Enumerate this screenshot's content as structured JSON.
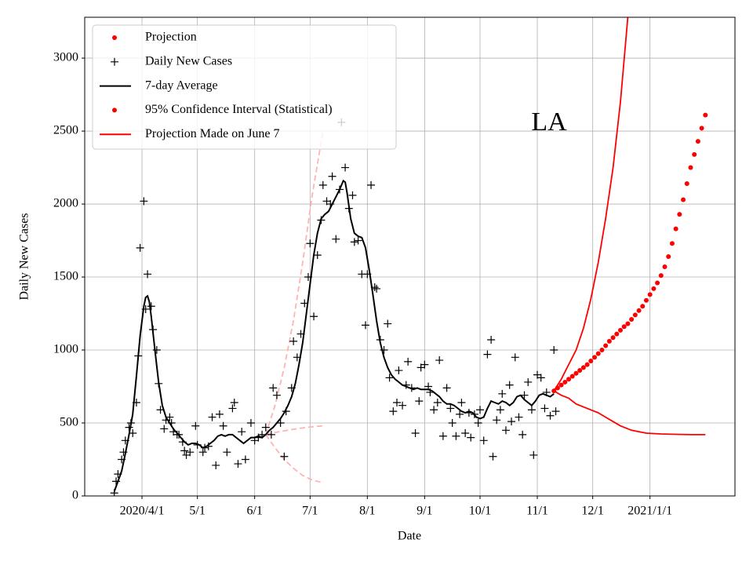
{
  "chart_data": {
    "type": "scatter",
    "annotation": "LA",
    "xlabel": "Date",
    "ylabel": "Daily New Cases",
    "grid": true,
    "legend": "upper left",
    "xlim": [
      60,
      412
    ],
    "ylim": [
      0,
      3280
    ],
    "xticks": [
      {
        "value": 91,
        "label": "2020/4/1"
      },
      {
        "value": 121,
        "label": "5/1"
      },
      {
        "value": 152,
        "label": "6/1"
      },
      {
        "value": 182,
        "label": "7/1"
      },
      {
        "value": 213,
        "label": "8/1"
      },
      {
        "value": 244,
        "label": "9/1"
      },
      {
        "value": 274,
        "label": "10/1"
      },
      {
        "value": 305,
        "label": "11/1"
      },
      {
        "value": 335,
        "label": "12/1"
      },
      {
        "value": 366,
        "label": "2021/1/1"
      }
    ],
    "yticks": [
      0,
      500,
      1000,
      1500,
      2000,
      2500,
      3000
    ],
    "series": [
      {
        "name": "Projection",
        "marker": "dot",
        "color": "#ff0000",
        "x": [
          314,
          316,
          318,
          320,
          322,
          324,
          326,
          328,
          330,
          332,
          334,
          336,
          338,
          340,
          342,
          344,
          346,
          348,
          350,
          352,
          354,
          356,
          358,
          360,
          362,
          364,
          366,
          368,
          370,
          372,
          374,
          376,
          378,
          380,
          382,
          384,
          386,
          388,
          390,
          392,
          394,
          396
        ],
        "values": [
          720,
          740,
          760,
          780,
          800,
          820,
          840,
          860,
          880,
          900,
          925,
          950,
          975,
          1000,
          1030,
          1060,
          1085,
          1110,
          1135,
          1160,
          1180,
          1210,
          1240,
          1270,
          1300,
          1340,
          1380,
          1420,
          1460,
          1510,
          1570,
          1640,
          1730,
          1830,
          1930,
          2030,
          2140,
          2250,
          2340,
          2430,
          2520,
          2610
        ]
      },
      {
        "name": "Daily New Cases",
        "marker": "plus",
        "color": "#000000",
        "x": [
          76,
          77,
          78,
          80,
          81,
          82,
          84,
          85,
          86,
          88,
          89,
          90,
          92,
          93,
          94,
          96,
          97,
          99,
          100,
          101,
          103,
          104,
          106,
          107,
          108,
          110,
          111,
          113,
          114,
          115,
          117,
          120,
          121,
          124,
          125,
          127,
          129,
          131,
          133,
          135,
          137,
          140,
          141,
          143,
          145,
          147,
          150,
          152,
          154,
          156,
          158,
          161,
          162,
          164,
          166,
          168,
          169,
          172,
          173,
          175,
          177,
          179,
          181,
          182,
          184,
          186,
          188,
          189,
          191,
          193,
          194,
          196,
          198,
          199,
          201,
          203,
          205,
          206,
          208,
          210,
          212,
          213,
          215,
          217,
          218,
          220,
          222,
          224,
          225,
          227,
          229,
          230,
          232,
          234,
          235,
          237,
          239,
          241,
          242,
          244,
          246,
          247,
          249,
          251,
          252,
          254,
          256,
          258,
          259,
          261,
          263,
          264,
          266,
          268,
          269,
          271,
          273,
          274,
          276,
          278,
          280,
          281,
          283,
          285,
          286,
          288,
          290,
          291,
          293,
          295,
          297,
          298,
          300,
          302,
          303,
          305,
          307,
          309,
          310,
          312,
          314,
          315
        ],
        "values": [
          20,
          100,
          150,
          250,
          300,
          380,
          470,
          500,
          430,
          640,
          960,
          1700,
          2020,
          1280,
          1520,
          1300,
          1140,
          1000,
          770,
          590,
          460,
          520,
          540,
          500,
          440,
          420,
          420,
          370,
          310,
          280,
          300,
          480,
          350,
          300,
          330,
          340,
          540,
          210,
          560,
          480,
          300,
          600,
          640,
          220,
          440,
          250,
          500,
          380,
          400,
          420,
          470,
          420,
          740,
          690,
          500,
          270,
          580,
          740,
          1060,
          950,
          1110,
          1320,
          1500,
          1730,
          1230,
          1650,
          1890,
          2130,
          2020,
          2000,
          2190,
          1760,
          2100,
          2560,
          2250,
          1970,
          2060,
          1740,
          1750,
          1520,
          1170,
          1520,
          2130,
          1430,
          1420,
          1070,
          1000,
          1180,
          810,
          580,
          640,
          860,
          620,
          760,
          920,
          740,
          430,
          650,
          880,
          900,
          750,
          710,
          590,
          640,
          930,
          410,
          740,
          600,
          500,
          410,
          560,
          640,
          430,
          570,
          400,
          560,
          500,
          590,
          380,
          970,
          1070,
          270,
          520,
          590,
          700,
          450,
          760,
          510,
          950,
          540,
          420,
          690,
          780,
          590,
          280,
          830,
          810,
          600,
          710,
          550,
          1000,
          580
        ]
      },
      {
        "name": "7-day Average",
        "marker": "line",
        "color": "#000000",
        "x": [
          76,
          78,
          80,
          82,
          84,
          86,
          88,
          90,
          92,
          93,
          94,
          95,
          96,
          98,
          100,
          102,
          104,
          106,
          108,
          110,
          112,
          114,
          116,
          118,
          120,
          122,
          124,
          126,
          128,
          130,
          132,
          134,
          136,
          138,
          140,
          142,
          144,
          146,
          148,
          150,
          152,
          154,
          156,
          158,
          160,
          162,
          164,
          166,
          168,
          170,
          172,
          174,
          176,
          178,
          180,
          182,
          184,
          186,
          188,
          190,
          192,
          194,
          196,
          198,
          200,
          201,
          202,
          204,
          206,
          208,
          210,
          212,
          214,
          216,
          218,
          220,
          222,
          224,
          226,
          228,
          230,
          232,
          234,
          236,
          238,
          240,
          242,
          244,
          246,
          248,
          250,
          252,
          254,
          256,
          258,
          260,
          262,
          264,
          266,
          268,
          270,
          272,
          274,
          276,
          278,
          280,
          282,
          284,
          286,
          288,
          290,
          292,
          294,
          296,
          298,
          300,
          302,
          304,
          306,
          308,
          310,
          312,
          314
        ],
        "values": [
          30,
          100,
          170,
          290,
          420,
          560,
          820,
          1100,
          1300,
          1360,
          1370,
          1330,
          1230,
          1000,
          780,
          620,
          540,
          500,
          460,
          430,
          400,
          370,
          350,
          360,
          360,
          350,
          330,
          340,
          360,
          380,
          410,
          420,
          410,
          420,
          420,
          400,
          380,
          360,
          380,
          400,
          400,
          410,
          400,
          420,
          450,
          470,
          500,
          530,
          570,
          620,
          680,
          770,
          900,
          1050,
          1250,
          1450,
          1650,
          1800,
          1900,
          1930,
          1950,
          2000,
          2050,
          2100,
          2160,
          2150,
          2080,
          1900,
          1800,
          1780,
          1770,
          1700,
          1550,
          1380,
          1200,
          1050,
          950,
          880,
          830,
          800,
          780,
          760,
          750,
          740,
          730,
          740,
          730,
          730,
          730,
          720,
          700,
          680,
          650,
          630,
          630,
          620,
          600,
          580,
          570,
          580,
          570,
          540,
          530,
          540,
          600,
          650,
          640,
          630,
          650,
          640,
          620,
          640,
          680,
          690,
          660,
          640,
          620,
          650,
          690,
          700,
          690,
          680,
          700
        ]
      },
      {
        "name": "95% Confidence Interval (Statistical)",
        "marker": "dot",
        "color": "#ff0000",
        "x": [],
        "values": []
      },
      {
        "name": "Projection Made on June 7",
        "marker": "band",
        "color": "#ff0000",
        "upper": {
          "x": [
            314,
            318,
            322,
            326,
            330,
            334,
            338,
            342,
            346,
            350,
            354
          ],
          "values": [
            720,
            800,
            900,
            1000,
            1150,
            1350,
            1600,
            1900,
            2250,
            2700,
            3280
          ]
        },
        "lower": {
          "x": [
            314,
            318,
            322,
            326,
            330,
            334,
            338,
            342,
            346,
            350,
            356,
            364,
            372,
            380,
            388,
            396
          ],
          "values": [
            720,
            690,
            670,
            630,
            610,
            590,
            570,
            540,
            510,
            480,
            450,
            430,
            425,
            422,
            420,
            420
          ]
        }
      }
    ],
    "extra_lines": [
      {
        "color": "#ffb3b3",
        "dashed": true,
        "x": [
          158,
          163,
          168,
          173,
          178,
          183,
          189
        ],
        "values": [
          420,
          620,
          880,
          1200,
          1600,
          2050,
          2500
        ]
      },
      {
        "color": "#ffb3b3",
        "dashed": true,
        "x": [
          158,
          165,
          172,
          180,
          189
        ],
        "values": [
          420,
          440,
          455,
          470,
          480
        ]
      },
      {
        "color": "#ffb3b3",
        "dashed": true,
        "x": [
          158,
          163,
          168,
          173,
          178,
          183,
          189
        ],
        "values": [
          420,
          330,
          250,
          190,
          140,
          110,
          90
        ]
      }
    ]
  }
}
